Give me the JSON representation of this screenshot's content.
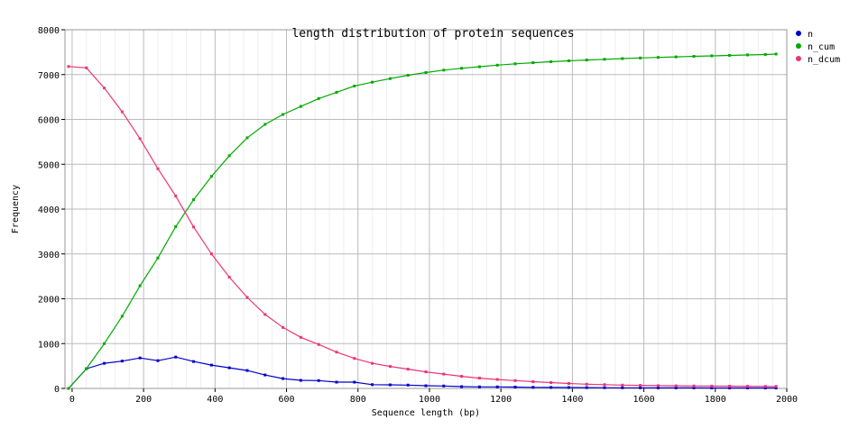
{
  "chart_data": {
    "type": "line",
    "title": "length distribution of protein sequences",
    "xlabel": "Sequence length (bp)",
    "ylabel": "Frequency",
    "xlim": [
      -20,
      2000
    ],
    "ylim": [
      0,
      8000
    ],
    "x_ticks": [
      0,
      200,
      400,
      600,
      800,
      1000,
      1200,
      1400,
      1600,
      1800,
      2000
    ],
    "y_ticks": [
      0,
      1000,
      2000,
      3000,
      4000,
      5000,
      6000,
      7000,
      8000
    ],
    "grid": true,
    "legend_position": "top-right",
    "x": [
      -10,
      40,
      90,
      140,
      190,
      240,
      290,
      340,
      390,
      440,
      490,
      540,
      590,
      640,
      690,
      740,
      790,
      840,
      890,
      940,
      990,
      1040,
      1090,
      1140,
      1190,
      1240,
      1290,
      1340,
      1390,
      1440,
      1490,
      1540,
      1590,
      1640,
      1690,
      1740,
      1790,
      1840,
      1890,
      1940,
      1970
    ],
    "series": [
      {
        "name": "n",
        "color": "#0000cc",
        "values": [
          0,
          440,
          560,
          610,
          680,
          620,
          700,
          600,
          520,
          460,
          400,
          300,
          220,
          180,
          175,
          140,
          140,
          85,
          80,
          75,
          60,
          55,
          40,
          35,
          35,
          30,
          25,
          22,
          20,
          18,
          16,
          15,
          14,
          13,
          12,
          12,
          11,
          10,
          10,
          10,
          10
        ]
      },
      {
        "name": "n_cum",
        "color": "#00aa00",
        "values": [
          0,
          440,
          1000,
          1610,
          2290,
          2910,
          3610,
          4210,
          4730,
          5190,
          5590,
          5890,
          6110,
          6290,
          6465,
          6605,
          6745,
          6830,
          6910,
          6985,
          7045,
          7100,
          7140,
          7175,
          7210,
          7240,
          7265,
          7287,
          7307,
          7325,
          7341,
          7356,
          7370,
          7383,
          7395,
          7407,
          7418,
          7428,
          7438,
          7448,
          7458
        ]
      },
      {
        "name": "n_dcum",
        "color": "#ee3377",
        "values": [
          7180,
          7150,
          6700,
          6170,
          5570,
          4900,
          4290,
          3600,
          3000,
          2480,
          2030,
          1650,
          1360,
          1140,
          980,
          810,
          670,
          560,
          490,
          430,
          370,
          320,
          270,
          230,
          200,
          175,
          150,
          130,
          110,
          95,
          85,
          75,
          68,
          62,
          58,
          55,
          52,
          50,
          48,
          46,
          45
        ]
      }
    ]
  }
}
